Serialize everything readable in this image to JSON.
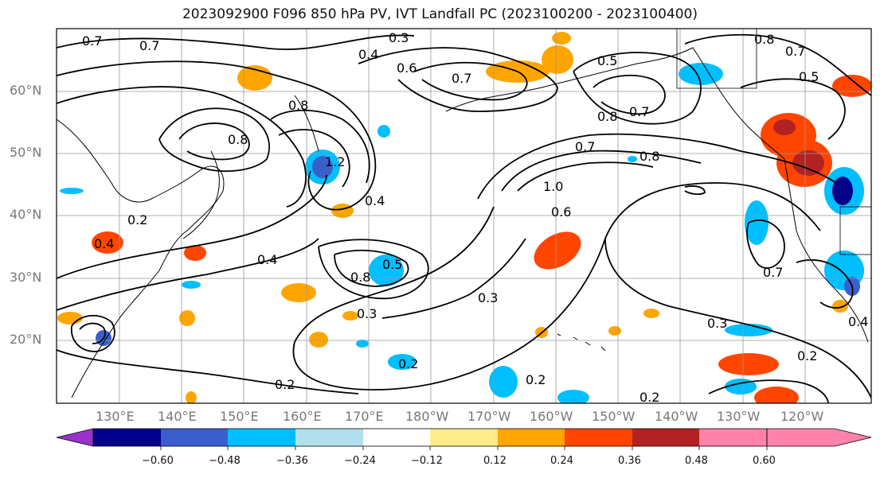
{
  "title": "2023092900 F096 850 hPa PV, IVT Landfall PC (2023100200 - 2023100400)",
  "lat_labels": [
    "60°N",
    "50°N",
    "40°N",
    "30°N",
    "20°N"
  ],
  "lon_labels": [
    "130°E",
    "140°E",
    "150°E",
    "160°E",
    "170°E",
    "180°W",
    "170°W",
    "160°W",
    "150°W",
    "140°W",
    "130°W",
    "120°W"
  ],
  "colorbar": {
    "tick_labels": [
      "−0.60",
      "−0.48",
      "−0.36",
      "−0.24",
      "−0.12",
      "0.12",
      "0.24",
      "0.36",
      "0.48",
      "0.60"
    ],
    "colors": [
      "#9a32cd",
      "#00008b",
      "#3a5fcd",
      "#00bfff",
      "#b2dfee",
      "#ffffff",
      "#ffec8b",
      "#ffa500",
      "#ff4500",
      "#b22222",
      "#ff82ab"
    ]
  },
  "contour_labels": [
    "0.7",
    "0.7",
    "0.3",
    "0.4",
    "0.8",
    "0.7",
    "0.5",
    "0.7",
    "0.8",
    "0.6",
    "0.8",
    "0.7",
    "0.5",
    "0.8",
    "0.7",
    "0.8",
    "1.2",
    "0.4",
    "1.0",
    "0.6",
    "0.2",
    "0.4",
    "0.5",
    "0.8",
    "0.4",
    "0.3",
    "0.3",
    "0.2",
    "0.2",
    "0.2",
    "0.3",
    "0.2",
    "0.7",
    "0.2",
    "0.4"
  ],
  "colors": {
    "contour": "#000000",
    "grid": "#999999",
    "coast": "#000000",
    "axis_label": "#777777"
  }
}
